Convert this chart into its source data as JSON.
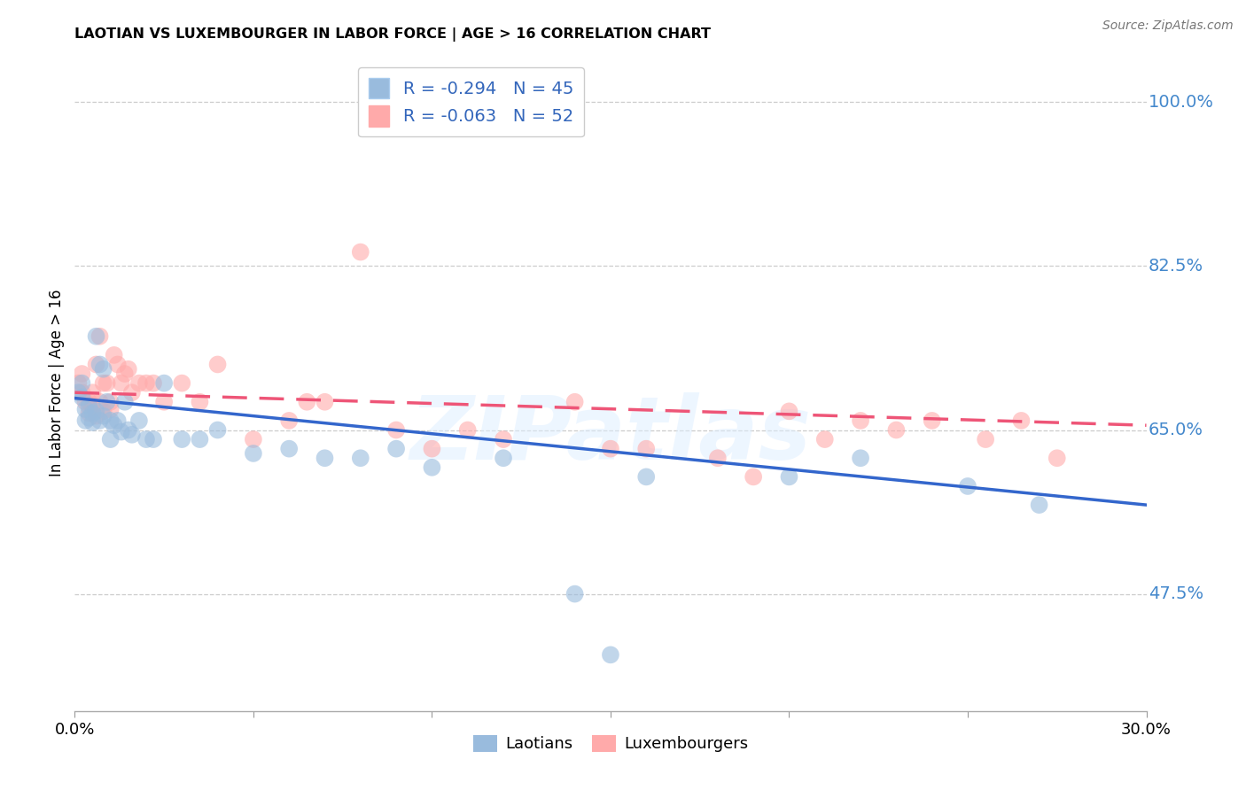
{
  "title": "LAOTIAN VS LUXEMBOURGER IN LABOR FORCE | AGE > 16 CORRELATION CHART",
  "source": "Source: ZipAtlas.com",
  "ylabel": "In Labor Force | Age > 16",
  "xlim": [
    0.0,
    0.3
  ],
  "ylim": [
    0.35,
    1.05
  ],
  "yticks": [
    0.475,
    0.65,
    0.825,
    1.0
  ],
  "ytick_labels": [
    "47.5%",
    "65.0%",
    "82.5%",
    "100.0%"
  ],
  "laotian_R": -0.294,
  "laotian_N": 45,
  "luxembourger_R": -0.063,
  "luxembourger_N": 52,
  "laotian_color": "#99BBDD",
  "luxembourger_color": "#FFAAAA",
  "laotian_line_color": "#3366CC",
  "luxembourger_line_color": "#EE5577",
  "background_color": "#FFFFFF",
  "watermark": "ZIPatlas",
  "laotian_x": [
    0.001,
    0.002,
    0.002,
    0.003,
    0.003,
    0.004,
    0.004,
    0.005,
    0.005,
    0.006,
    0.006,
    0.007,
    0.007,
    0.008,
    0.008,
    0.009,
    0.01,
    0.01,
    0.011,
    0.012,
    0.013,
    0.014,
    0.015,
    0.016,
    0.018,
    0.02,
    0.022,
    0.025,
    0.03,
    0.035,
    0.04,
    0.05,
    0.06,
    0.07,
    0.08,
    0.09,
    0.1,
    0.12,
    0.14,
    0.15,
    0.16,
    0.2,
    0.22,
    0.25,
    0.27
  ],
  "laotian_y": [
    0.69,
    0.685,
    0.7,
    0.672,
    0.66,
    0.675,
    0.663,
    0.668,
    0.658,
    0.67,
    0.75,
    0.66,
    0.72,
    0.665,
    0.715,
    0.68,
    0.66,
    0.64,
    0.655,
    0.66,
    0.648,
    0.68,
    0.65,
    0.645,
    0.66,
    0.64,
    0.64,
    0.7,
    0.64,
    0.64,
    0.65,
    0.625,
    0.63,
    0.62,
    0.62,
    0.63,
    0.61,
    0.62,
    0.475,
    0.41,
    0.6,
    0.6,
    0.62,
    0.59,
    0.57
  ],
  "luxembourger_x": [
    0.001,
    0.002,
    0.002,
    0.003,
    0.004,
    0.004,
    0.005,
    0.005,
    0.006,
    0.006,
    0.007,
    0.007,
    0.008,
    0.008,
    0.009,
    0.01,
    0.01,
    0.011,
    0.012,
    0.013,
    0.014,
    0.015,
    0.016,
    0.018,
    0.02,
    0.022,
    0.025,
    0.03,
    0.035,
    0.04,
    0.05,
    0.06,
    0.065,
    0.07,
    0.08,
    0.09,
    0.1,
    0.11,
    0.12,
    0.14,
    0.15,
    0.16,
    0.18,
    0.19,
    0.2,
    0.21,
    0.22,
    0.23,
    0.24,
    0.255,
    0.265,
    0.275
  ],
  "luxembourger_y": [
    0.7,
    0.69,
    0.71,
    0.68,
    0.68,
    0.668,
    0.675,
    0.69,
    0.665,
    0.72,
    0.68,
    0.75,
    0.7,
    0.67,
    0.7,
    0.672,
    0.68,
    0.73,
    0.72,
    0.7,
    0.71,
    0.715,
    0.69,
    0.7,
    0.7,
    0.7,
    0.68,
    0.7,
    0.68,
    0.72,
    0.64,
    0.66,
    0.68,
    0.68,
    0.84,
    0.65,
    0.63,
    0.65,
    0.64,
    0.68,
    0.63,
    0.63,
    0.62,
    0.6,
    0.67,
    0.64,
    0.66,
    0.65,
    0.66,
    0.64,
    0.66,
    0.62
  ],
  "laotian_line_x0": 0.0,
  "laotian_line_y0": 0.684,
  "laotian_line_x1": 0.3,
  "laotian_line_y1": 0.57,
  "luxembourger_line_x0": 0.0,
  "luxembourger_line_y0": 0.69,
  "luxembourger_line_x1": 0.3,
  "luxembourger_line_y1": 0.655
}
